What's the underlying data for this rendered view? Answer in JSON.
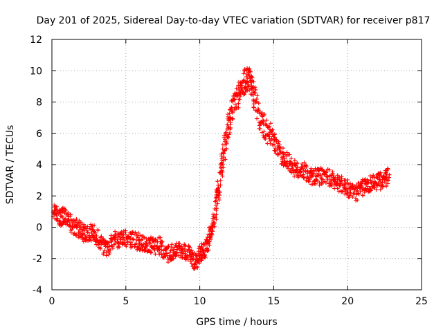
{
  "chart_data": {
    "type": "scatter",
    "title": "Day 201 of 2025, Sidereal Day-to-day VTEC variation (SDTVAR) for receiver p817",
    "xlabel": "GPS time / hours",
    "ylabel": "SDTVAR / TECUs",
    "xlim": [
      0,
      25
    ],
    "ylim": [
      -4,
      12
    ],
    "xticks": [
      "0",
      "5",
      "10",
      "15",
      "20",
      "25"
    ],
    "yticks": [
      "-4",
      "-2",
      "0",
      "2",
      "4",
      "6",
      "8",
      "10",
      "12"
    ],
    "grid": true,
    "marker": "+",
    "series_color": "#ff0000",
    "trend": [
      [
        0.1,
        1.2
      ],
      [
        0.5,
        0.6
      ],
      [
        0.9,
        0.8
      ],
      [
        1.3,
        0.2
      ],
      [
        1.8,
        -0.1
      ],
      [
        2.2,
        -0.4
      ],
      [
        2.7,
        -0.3
      ],
      [
        3.2,
        -0.8
      ],
      [
        3.7,
        -1.5
      ],
      [
        4.2,
        -0.8
      ],
      [
        4.7,
        -0.7
      ],
      [
        5.2,
        -0.8
      ],
      [
        5.8,
        -0.9
      ],
      [
        6.3,
        -1.0
      ],
      [
        6.8,
        -1.2
      ],
      [
        7.3,
        -1.2
      ],
      [
        7.8,
        -1.7
      ],
      [
        8.3,
        -1.6
      ],
      [
        8.8,
        -1.4
      ],
      [
        9.3,
        -1.7
      ],
      [
        9.7,
        -2.2
      ],
      [
        10.1,
        -1.6
      ],
      [
        10.4,
        -1.5
      ],
      [
        10.7,
        -0.5
      ],
      [
        11.0,
        0.8
      ],
      [
        11.3,
        2.5
      ],
      [
        11.6,
        4.6
      ],
      [
        11.9,
        6.3
      ],
      [
        12.2,
        7.5
      ],
      [
        12.6,
        8.5
      ],
      [
        13.0,
        9.2
      ],
      [
        13.3,
        9.6
      ],
      [
        13.6,
        8.8
      ],
      [
        14.0,
        7.0
      ],
      [
        14.5,
        6.2
      ],
      [
        15.0,
        5.5
      ],
      [
        15.5,
        4.6
      ],
      [
        16.0,
        4.2
      ],
      [
        16.5,
        3.6
      ],
      [
        17.0,
        3.7
      ],
      [
        17.5,
        3.2
      ],
      [
        18.0,
        3.2
      ],
      [
        18.5,
        3.3
      ],
      [
        19.0,
        3.0
      ],
      [
        19.5,
        2.8
      ],
      [
        20.0,
        2.5
      ],
      [
        20.5,
        2.2
      ],
      [
        21.0,
        2.5
      ],
      [
        21.5,
        2.8
      ],
      [
        22.0,
        2.9
      ],
      [
        22.4,
        3.0
      ],
      [
        22.8,
        3.3
      ]
    ]
  }
}
